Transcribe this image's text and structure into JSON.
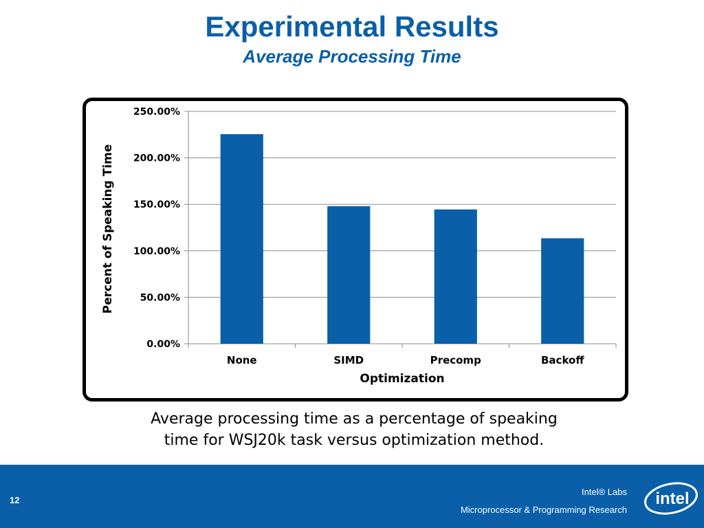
{
  "slide": {
    "title": "Experimental Results",
    "subtitle": "Average Processing Time",
    "caption_line1": "Average processing time as a percentage of speaking",
    "caption_line2": "time for WSJ20k task versus optimization method.",
    "number": "12",
    "footer_line1": "Intel® Labs",
    "footer_line2": "Microprocessor & Programming Research",
    "logo_text": "intel"
  },
  "colors": {
    "title": "#0a5fa8",
    "bar": "#0a5fa8",
    "footer": "#0a5fa8",
    "grid": "#8c8c8c"
  },
  "chart_data": {
    "type": "bar",
    "categories": [
      "None",
      "SIMD",
      "Precomp",
      "Backoff"
    ],
    "values": [
      225.5,
      148,
      144.5,
      113.5
    ],
    "xlabel": "Optimization",
    "ylabel": "Percent of Speaking Time",
    "ylim": [
      0,
      250
    ],
    "yticks": [
      0,
      50,
      100,
      150,
      200,
      250
    ],
    "ytick_labels": [
      "0.00%",
      "50.00%",
      "100.00%",
      "150.00%",
      "200.00%",
      "250.00%"
    ],
    "grid": true,
    "legend": "none"
  }
}
